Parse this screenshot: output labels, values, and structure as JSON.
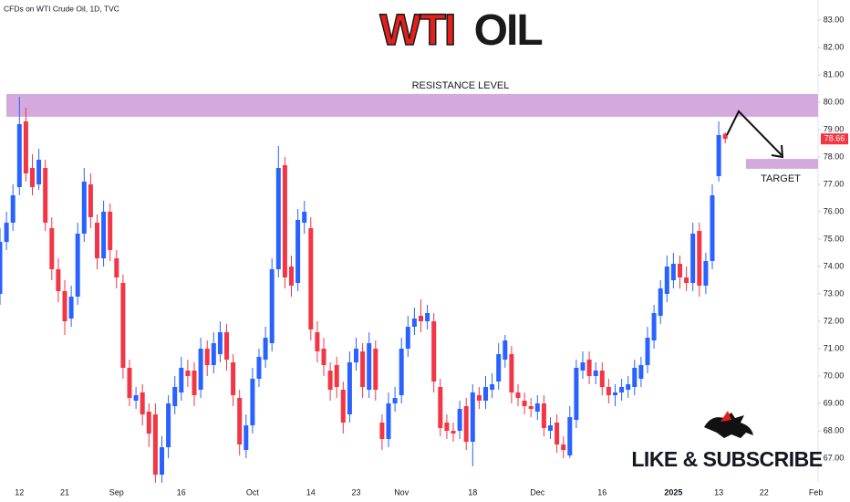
{
  "chart_data": {
    "type": "candlestick",
    "source": "CFDs on WTI Crude Oil, 1D, TVC",
    "title_parts": [
      "WTI",
      "OIL"
    ],
    "up_color": "#2962ff",
    "down_color": "#f23645",
    "categories": [
      null,
      null,
      null,
      "12",
      null,
      null,
      null,
      null,
      null,
      null,
      "21",
      null,
      null,
      null,
      null,
      null,
      null,
      null,
      "Sep",
      null,
      null,
      null,
      null,
      null,
      null,
      null,
      null,
      null,
      "16",
      null,
      null,
      null,
      null,
      null,
      null,
      null,
      null,
      null,
      null,
      "Oct",
      null,
      null,
      null,
      null,
      null,
      null,
      null,
      null,
      "14",
      null,
      null,
      null,
      null,
      null,
      null,
      "23",
      null,
      null,
      null,
      null,
      null,
      null,
      "Nov",
      null,
      null,
      null,
      null,
      null,
      null,
      null,
      null,
      null,
      null,
      "18",
      null,
      null,
      null,
      null,
      null,
      null,
      null,
      null,
      null,
      "Dec",
      null,
      null,
      null,
      null,
      null,
      null,
      null,
      null,
      null,
      "16",
      null,
      null,
      null,
      null,
      null,
      null,
      null,
      null,
      null,
      null,
      "2025",
      null,
      null,
      null,
      null,
      null,
      null,
      "13",
      null,
      null,
      null,
      null,
      null,
      null,
      "22",
      null,
      null,
      null,
      null,
      null,
      null,
      null,
      "Feb"
    ],
    "open": [
      73.0,
      74.9,
      75.6,
      76.9,
      79.3,
      77.6,
      77.0,
      77.6,
      75.4,
      73.9,
      73.1,
      72.1,
      72.9,
      75.2,
      77.0,
      75.6,
      74.3,
      76.0,
      74.3,
      73.4,
      70.3,
      69.1,
      69.4,
      68.7,
      68.6,
      66.4,
      67.4,
      68.9,
      69.4,
      70.2,
      70.2,
      69.5,
      71.0,
      70.4,
      70.8,
      71.6,
      70.5,
      69.2,
      67.3,
      68.2,
      69.9,
      70.6,
      71.2,
      73.9,
      77.7,
      74.0,
      73.4,
      75.6,
      75.4,
      71.6,
      71.0,
      70.2,
      70.4,
      69.5,
      68.6,
      70.5,
      70.9,
      69.5,
      71.0,
      68.3,
      67.7,
      69.0,
      69.3,
      71.0,
      71.8,
      72.2,
      72.0,
      72.0,
      69.6,
      68.3,
      68.0,
      68.0,
      68.9,
      67.6,
      69.3,
      69.1,
      69.5,
      69.8,
      70.6,
      70.8,
      69.4,
      69.1,
      68.9,
      68.7,
      69.0,
      68.0,
      68.3,
      67.5,
      67.1,
      68.4,
      70.2,
      70.6,
      70.0,
      70.2,
      69.6,
      69.3,
      69.4,
      69.5,
      69.6,
      69.9,
      70.4,
      71.3,
      72.2,
      73.0,
      73.5,
      74.1,
      73.6,
      73.4,
      75.3,
      73.3,
      74.2,
      77.3,
      78.85,
      null,
      null,
      null,
      null,
      null,
      null,
      null,
      null,
      null,
      null,
      null,
      null,
      null,
      null
    ],
    "high": [
      75.4,
      76.0,
      77.0,
      80.2,
      79.8,
      78.1,
      78.3,
      77.9,
      75.8,
      74.3,
      73.5,
      73.3,
      75.6,
      77.6,
      77.4,
      75.9,
      76.4,
      76.3,
      74.6,
      73.7,
      70.6,
      69.6,
      69.7,
      69.0,
      69.0,
      67.8,
      69.3,
      70.0,
      70.7,
      70.6,
      70.5,
      71.4,
      71.3,
      71.6,
      72.0,
      71.9,
      70.8,
      69.5,
      68.6,
      70.3,
      71.0,
      71.8,
      74.3,
      78.4,
      78.0,
      74.4,
      76.1,
      76.4,
      75.8,
      72.0,
      71.4,
      70.5,
      70.7,
      69.8,
      70.9,
      71.4,
      71.2,
      71.6,
      71.3,
      68.6,
      69.4,
      69.6,
      71.4,
      72.2,
      72.5,
      72.8,
      72.6,
      72.3,
      69.9,
      68.6,
      68.3,
      69.1,
      69.2,
      69.7,
      69.6,
      70.0,
      70.1,
      71.2,
      71.5,
      71.1,
      69.7,
      69.4,
      69.2,
      69.3,
      69.3,
      68.5,
      68.6,
      67.8,
      68.9,
      70.6,
      70.9,
      70.9,
      70.5,
      70.5,
      69.9,
      69.7,
      69.9,
      70.0,
      70.6,
      70.7,
      71.8,
      72.6,
      73.5,
      74.4,
      74.5,
      74.4,
      74.0,
      75.6,
      75.6,
      74.5,
      77.0,
      79.3,
      78.9,
      null,
      null,
      null,
      null,
      null,
      null,
      null,
      null,
      null,
      null,
      null,
      null,
      null,
      null
    ],
    "low": [
      72.6,
      74.6,
      75.3,
      76.6,
      77.1,
      76.6,
      76.8,
      75.3,
      73.5,
      72.7,
      71.5,
      71.8,
      72.6,
      74.9,
      75.4,
      73.9,
      74.0,
      74.2,
      73.2,
      69.9,
      68.9,
      68.8,
      68.2,
      67.4,
      66.1,
      66.1,
      67.0,
      68.6,
      69.1,
      69.6,
      68.9,
      69.2,
      70.0,
      70.1,
      70.5,
      70.2,
      68.9,
      67.1,
      67.0,
      67.9,
      69.6,
      70.3,
      70.9,
      73.6,
      73.2,
      72.9,
      73.1,
      75.2,
      71.3,
      70.5,
      70.0,
      69.1,
      69.2,
      67.9,
      68.3,
      70.2,
      69.2,
      69.2,
      69.1,
      67.3,
      67.4,
      68.7,
      69.0,
      70.7,
      71.5,
      71.6,
      71.7,
      69.4,
      67.8,
      67.7,
      67.6,
      67.7,
      67.3,
      66.7,
      68.8,
      68.8,
      69.2,
      69.5,
      70.3,
      69.0,
      68.9,
      68.6,
      68.5,
      68.4,
      67.8,
      67.7,
      67.2,
      67.0,
      67.0,
      68.1,
      69.9,
      69.7,
      69.7,
      69.3,
      69.0,
      68.9,
      69.1,
      69.2,
      69.3,
      69.6,
      70.1,
      71.0,
      71.9,
      72.7,
      73.2,
      73.2,
      73.1,
      73.1,
      72.9,
      73.0,
      73.9,
      77.1,
      78.5,
      null,
      null,
      null,
      null,
      null,
      null,
      null,
      null,
      null,
      null,
      null,
      null,
      null,
      null
    ],
    "close": [
      74.9,
      75.6,
      76.6,
      79.2,
      77.4,
      76.9,
      77.9,
      75.6,
      73.9,
      73.1,
      72.0,
      72.9,
      75.2,
      77.1,
      75.8,
      74.3,
      76.0,
      74.6,
      73.6,
      70.3,
      69.2,
      69.3,
      68.6,
      67.9,
      66.4,
      67.4,
      69.0,
      69.6,
      70.3,
      70.0,
      69.3,
      71.0,
      70.4,
      71.2,
      71.6,
      70.6,
      69.3,
      67.5,
      68.2,
      69.9,
      70.7,
      71.4,
      73.9,
      77.6,
      73.6,
      73.3,
      75.7,
      76.0,
      71.7,
      70.9,
      70.4,
      69.5,
      69.6,
      68.3,
      70.5,
      71.0,
      69.6,
      71.2,
      69.5,
      67.7,
      69.0,
      69.2,
      71.0,
      71.8,
      72.1,
      72.0,
      72.3,
      69.8,
      68.1,
      68.0,
      67.9,
      68.8,
      67.6,
      69.4,
      69.1,
      69.6,
      69.7,
      70.8,
      71.3,
      69.4,
      69.2,
      68.9,
      68.8,
      69.0,
      68.1,
      68.2,
      67.5,
      67.3,
      68.5,
      70.3,
      70.5,
      70.0,
      70.2,
      69.6,
      69.3,
      69.4,
      69.6,
      69.7,
      70.3,
      70.4,
      71.4,
      72.3,
      73.2,
      74.0,
      74.1,
      73.6,
      73.4,
      75.2,
      73.3,
      74.2,
      76.6,
      78.8,
      78.66,
      null,
      null,
      null,
      null,
      null,
      null,
      null,
      null,
      null,
      null,
      null,
      null,
      null,
      null
    ],
    "ylim": [
      66.2,
      83.733
    ],
    "yticks": [
      {
        "value": 67,
        "label": "67.00"
      },
      {
        "value": 68,
        "label": "68.00"
      },
      {
        "value": 69,
        "label": "69.00"
      },
      {
        "value": 70,
        "label": "70.00"
      },
      {
        "value": 71,
        "label": "71.00"
      },
      {
        "value": 72,
        "label": "72.00"
      },
      {
        "value": 73,
        "label": "73.00"
      },
      {
        "value": 74,
        "label": "74.00"
      },
      {
        "value": 75,
        "label": "75.00"
      },
      {
        "value": 76,
        "label": "76.00"
      },
      {
        "value": 77,
        "label": "77.00"
      },
      {
        "value": 78,
        "label": "78.00"
      },
      {
        "value": 79,
        "label": "79.00"
      },
      {
        "value": 80,
        "label": "80.00"
      },
      {
        "value": 81,
        "label": "81.00"
      },
      {
        "value": 82,
        "label": "82.00"
      },
      {
        "value": 83,
        "label": "83.00"
      }
    ],
    "last_price": 78.66,
    "resistance": {
      "label": "RESISTANCE LEVEL",
      "range": [
        79.47,
        80.3
      ],
      "color": "#d4a9dd"
    },
    "target": {
      "label": "TARGET",
      "range": [
        77.57,
        77.93
      ],
      "color": "#d4a9dd"
    },
    "banner": "LIKE & SUBSCRIBE"
  }
}
